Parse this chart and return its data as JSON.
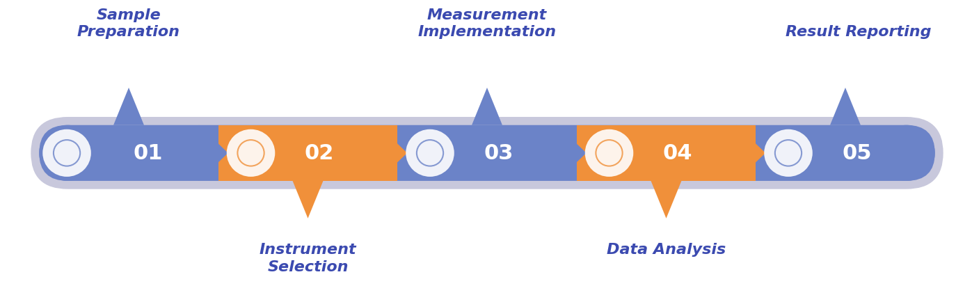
{
  "steps": [
    {
      "num": "01",
      "color": "#6B83C8",
      "label_above": "Sample\nPreparation",
      "label_below": null
    },
    {
      "num": "02",
      "color": "#F0903A",
      "label_above": null,
      "label_below": "Instrument\nSelection"
    },
    {
      "num": "03",
      "color": "#6B83C8",
      "label_above": "Measurement\nImplementation",
      "label_below": null
    },
    {
      "num": "04",
      "color": "#F0903A",
      "label_above": null,
      "label_below": "Data Analysis"
    },
    {
      "num": "05",
      "color": "#6B83C8",
      "label_above": "Result Reporting",
      "label_below": null
    }
  ],
  "blue_color": "#6B83C8",
  "orange_color": "#F0903A",
  "shadow_color": "#C8C8DC",
  "text_color": "#3B4AB0",
  "background_color": "#FFFFFF",
  "label_fontsize": 16,
  "num_fontsize": 22,
  "icon_fontsize": 18
}
